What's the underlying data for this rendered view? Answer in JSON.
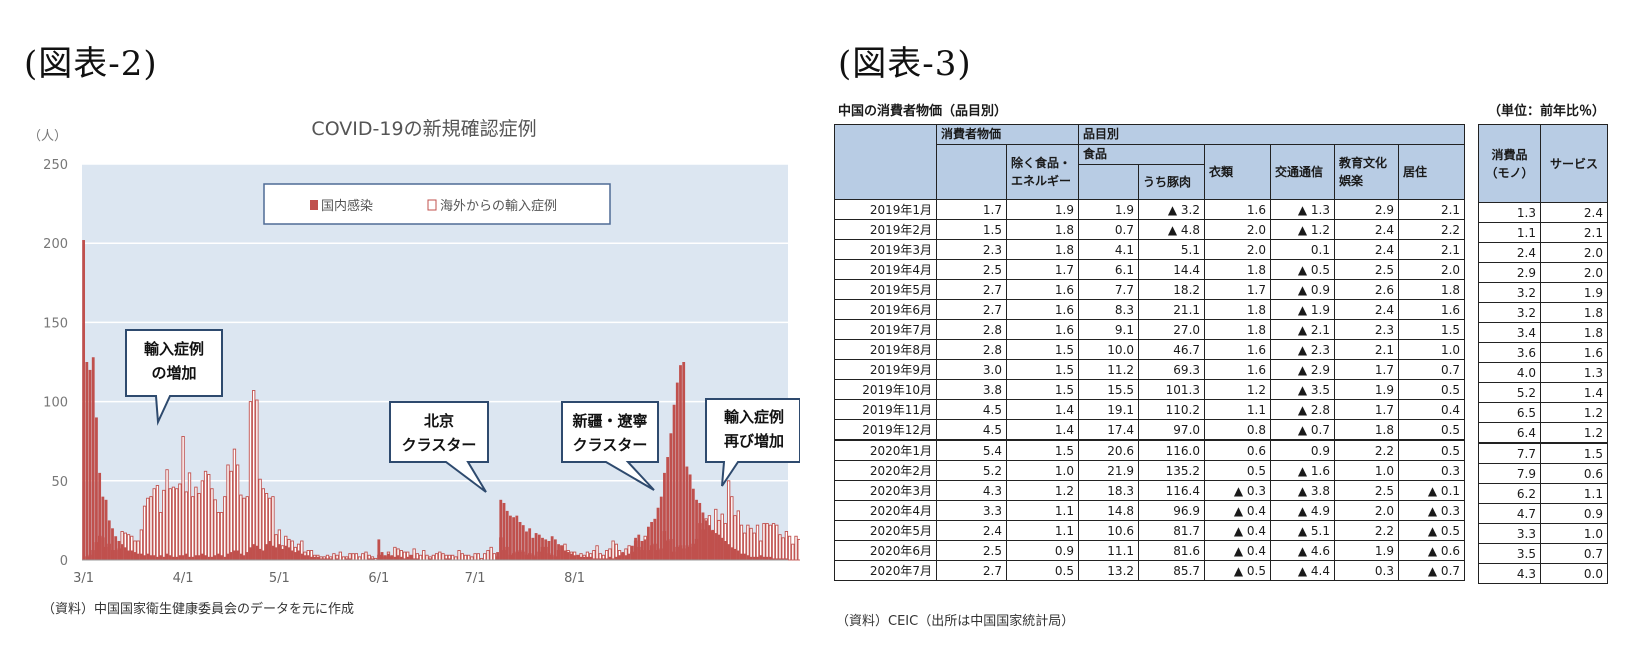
{
  "figure2": {
    "heading": "(図表-2)",
    "source": "（資料）中国国家衛生健康委員会のデータを元に作成"
  },
  "figure3": {
    "heading": "(図表-3)",
    "caption": "中国の消費者物価（品目別）",
    "unit": "（単位：前年比％）",
    "source": "（資料）CEIC（出所は中国国家統計局）",
    "headers": {
      "cpi": "消費者物価",
      "core": "除く食品・エネルギー",
      "by_item": "品目別",
      "food": "食品",
      "pork": "うち豚肉",
      "clothing": "衣類",
      "transport": "交通通信",
      "education": "教育文化娯楽",
      "housing": "居住",
      "goods": "消費品（モノ）",
      "services": "サービス"
    },
    "rows": [
      {
        "month": "2019年1月",
        "cpi": "1.7",
        "core": "1.9",
        "food": "1.9",
        "pork": "▲ 3.2",
        "clothing": "1.6",
        "transport": "▲ 1.3",
        "education": "2.9",
        "housing": "2.1",
        "goods": "1.3",
        "services": "2.4"
      },
      {
        "month": "2019年2月",
        "cpi": "1.5",
        "core": "1.8",
        "food": "0.7",
        "pork": "▲ 4.8",
        "clothing": "2.0",
        "transport": "▲ 1.2",
        "education": "2.4",
        "housing": "2.2",
        "goods": "1.1",
        "services": "2.1"
      },
      {
        "month": "2019年3月",
        "cpi": "2.3",
        "core": "1.8",
        "food": "4.1",
        "pork": "5.1",
        "clothing": "2.0",
        "transport": "0.1",
        "education": "2.4",
        "housing": "2.1",
        "goods": "2.4",
        "services": "2.0"
      },
      {
        "month": "2019年4月",
        "cpi": "2.5",
        "core": "1.7",
        "food": "6.1",
        "pork": "14.4",
        "clothing": "1.8",
        "transport": "▲ 0.5",
        "education": "2.5",
        "housing": "2.0",
        "goods": "2.9",
        "services": "2.0"
      },
      {
        "month": "2019年5月",
        "cpi": "2.7",
        "core": "1.6",
        "food": "7.7",
        "pork": "18.2",
        "clothing": "1.7",
        "transport": "▲ 0.9",
        "education": "2.6",
        "housing": "1.8",
        "goods": "3.2",
        "services": "1.9"
      },
      {
        "month": "2019年6月",
        "cpi": "2.7",
        "core": "1.6",
        "food": "8.3",
        "pork": "21.1",
        "clothing": "1.8",
        "transport": "▲ 1.9",
        "education": "2.4",
        "housing": "1.6",
        "goods": "3.2",
        "services": "1.8"
      },
      {
        "month": "2019年7月",
        "cpi": "2.8",
        "core": "1.6",
        "food": "9.1",
        "pork": "27.0",
        "clothing": "1.8",
        "transport": "▲ 2.1",
        "education": "2.3",
        "housing": "1.5",
        "goods": "3.4",
        "services": "1.8"
      },
      {
        "month": "2019年8月",
        "cpi": "2.8",
        "core": "1.5",
        "food": "10.0",
        "pork": "46.7",
        "clothing": "1.6",
        "transport": "▲ 2.3",
        "education": "2.1",
        "housing": "1.0",
        "goods": "3.6",
        "services": "1.6"
      },
      {
        "month": "2019年9月",
        "cpi": "3.0",
        "core": "1.5",
        "food": "11.2",
        "pork": "69.3",
        "clothing": "1.6",
        "transport": "▲ 2.9",
        "education": "1.7",
        "housing": "0.7",
        "goods": "4.0",
        "services": "1.3"
      },
      {
        "month": "2019年10月",
        "cpi": "3.8",
        "core": "1.5",
        "food": "15.5",
        "pork": "101.3",
        "clothing": "1.2",
        "transport": "▲ 3.5",
        "education": "1.9",
        "housing": "0.5",
        "goods": "5.2",
        "services": "1.4"
      },
      {
        "month": "2019年11月",
        "cpi": "4.5",
        "core": "1.4",
        "food": "19.1",
        "pork": "110.2",
        "clothing": "1.1",
        "transport": "▲ 2.8",
        "education": "1.7",
        "housing": "0.4",
        "goods": "6.5",
        "services": "1.2"
      },
      {
        "month": "2019年12月",
        "cpi": "4.5",
        "core": "1.4",
        "food": "17.4",
        "pork": "97.0",
        "clothing": "0.8",
        "transport": "▲ 0.7",
        "education": "1.8",
        "housing": "0.5",
        "goods": "6.4",
        "services": "1.2"
      },
      {
        "month": "2020年1月",
        "cpi": "5.4",
        "core": "1.5",
        "food": "20.6",
        "pork": "116.0",
        "clothing": "0.6",
        "transport": "0.9",
        "education": "2.2",
        "housing": "0.5",
        "goods": "7.7",
        "services": "1.5"
      },
      {
        "month": "2020年2月",
        "cpi": "5.2",
        "core": "1.0",
        "food": "21.9",
        "pork": "135.2",
        "clothing": "0.5",
        "transport": "▲ 1.6",
        "education": "1.0",
        "housing": "0.3",
        "goods": "7.9",
        "services": "0.6"
      },
      {
        "month": "2020年3月",
        "cpi": "4.3",
        "core": "1.2",
        "food": "18.3",
        "pork": "116.4",
        "clothing": "▲ 0.3",
        "transport": "▲ 3.8",
        "education": "2.5",
        "housing": "▲ 0.1",
        "goods": "6.2",
        "services": "1.1"
      },
      {
        "month": "2020年4月",
        "cpi": "3.3",
        "core": "1.1",
        "food": "14.8",
        "pork": "96.9",
        "clothing": "▲ 0.4",
        "transport": "▲ 4.9",
        "education": "2.0",
        "housing": "▲ 0.3",
        "goods": "4.7",
        "services": "0.9"
      },
      {
        "month": "2020年5月",
        "cpi": "2.4",
        "core": "1.1",
        "food": "10.6",
        "pork": "81.7",
        "clothing": "▲ 0.4",
        "transport": "▲ 5.1",
        "education": "2.2",
        "housing": "▲ 0.5",
        "goods": "3.3",
        "services": "1.0"
      },
      {
        "month": "2020年6月",
        "cpi": "2.5",
        "core": "0.9",
        "food": "11.1",
        "pork": "81.6",
        "clothing": "▲ 0.4",
        "transport": "▲ 4.6",
        "education": "1.9",
        "housing": "▲ 0.6",
        "goods": "3.5",
        "services": "0.7"
      },
      {
        "month": "2020年7月",
        "cpi": "2.7",
        "core": "0.5",
        "food": "13.2",
        "pork": "85.7",
        "clothing": "▲ 0.5",
        "transport": "▲ 4.4",
        "education": "0.3",
        "housing": "▲ 0.7",
        "goods": "4.3",
        "services": "0.0"
      }
    ]
  },
  "chart_data": {
    "type": "bar",
    "title": "COVID-19の新規確認症例",
    "ylabel": "（人）",
    "ylim": [
      0,
      250
    ],
    "yticks": [
      0,
      50,
      100,
      150,
      200,
      250
    ],
    "xtick_labels": [
      "3/1",
      "4/1",
      "5/1",
      "6/1",
      "7/1",
      "8/1"
    ],
    "x_start_date": "2020-03-01",
    "grid": true,
    "legend_position": "top-center",
    "colors": {
      "domestic": "#c0504d",
      "imported_edge": "#c0504d",
      "plot_bg": "#dce6f1"
    },
    "series": [
      {
        "name": "国内感染",
        "style": "filled",
        "values": [
          202,
          125,
          120,
          128,
          90,
          55,
          40,
          38,
          25,
          20,
          15,
          12,
          10,
          8,
          6,
          6,
          5,
          4,
          4,
          3,
          4,
          3,
          3,
          2,
          3,
          2,
          4,
          3,
          2,
          2,
          3,
          3,
          4,
          2,
          2,
          3,
          3,
          4,
          3,
          2,
          2,
          3,
          4,
          3,
          2,
          4,
          5,
          6,
          6,
          4,
          3,
          5,
          8,
          10,
          9,
          7,
          6,
          10,
          12,
          9,
          8,
          10,
          7,
          9,
          8,
          6,
          5,
          6,
          4,
          3,
          3,
          2,
          2,
          2,
          1,
          1,
          1,
          1,
          0,
          1,
          0,
          0,
          1,
          1,
          0,
          0,
          0,
          0,
          0,
          1,
          1,
          0,
          13,
          5,
          3,
          4,
          3,
          2,
          3,
          2,
          1,
          2,
          3,
          1,
          1,
          0,
          0,
          0,
          1,
          0,
          0,
          0,
          0,
          1,
          1,
          0,
          0,
          0,
          0,
          0,
          0,
          0,
          0,
          0,
          0,
          0,
          0,
          0,
          0,
          5,
          38,
          36,
          31,
          28,
          27,
          28,
          24,
          22,
          18,
          20,
          14,
          17,
          16,
          14,
          13,
          12,
          15,
          13,
          10,
          9,
          6,
          5,
          4,
          3,
          3,
          2,
          2,
          2,
          2,
          1,
          1,
          1,
          1,
          1,
          2,
          1,
          2,
          3,
          5,
          3,
          4,
          9,
          14,
          16,
          12,
          13,
          21,
          24,
          26,
          33,
          40,
          55,
          65,
          80,
          98,
          112,
          123,
          125,
          59,
          54,
          45,
          38,
          36,
          30,
          25,
          22,
          19,
          17,
          16,
          14,
          12,
          10,
          8,
          7,
          6,
          4,
          4,
          3,
          2,
          2,
          2,
          3,
          2,
          2,
          2,
          1,
          1,
          1,
          1,
          1
        ]
      },
      {
        "name": "海外からの輸入症例",
        "style": "outline",
        "values": [
          0,
          2,
          3,
          6,
          11,
          15,
          14,
          8,
          10,
          6,
          6,
          7,
          18,
          17,
          16,
          15,
          12,
          12,
          19,
          34,
          39,
          40,
          45,
          47,
          30,
          44,
          57,
          45,
          46,
          45,
          48,
          78,
          43,
          55,
          40,
          46,
          42,
          50,
          56,
          54,
          45,
          38,
          30,
          30,
          40,
          60,
          56,
          70,
          60,
          41,
          39,
          40,
          100,
          107,
          101,
          51,
          45,
          42,
          39,
          40,
          16,
          19,
          9,
          15,
          13,
          12,
          8,
          10,
          12,
          5,
          6,
          6,
          3,
          3,
          2,
          2,
          3,
          2,
          4,
          3,
          5,
          2,
          2,
          4,
          4,
          4,
          2,
          4,
          5,
          3,
          2,
          1,
          3,
          3,
          2,
          5,
          2,
          8,
          7,
          6,
          5,
          5,
          3,
          7,
          4,
          3,
          6,
          3,
          2,
          3,
          4,
          5,
          4,
          3,
          3,
          3,
          2,
          6,
          4,
          3,
          3,
          2,
          4,
          4,
          1,
          4,
          6,
          8,
          4,
          2,
          14,
          6,
          8,
          3,
          4,
          5,
          6,
          5,
          3,
          4,
          3,
          2,
          5,
          8,
          8,
          4,
          3,
          2,
          6,
          9,
          10,
          6,
          5,
          5,
          3,
          4,
          3,
          5,
          4,
          6,
          9,
          4,
          3,
          6,
          7,
          12,
          10,
          6,
          4,
          7,
          9,
          5,
          12,
          8,
          6,
          15,
          6,
          9,
          10,
          6,
          7,
          18,
          12,
          13,
          5,
          8,
          9,
          7,
          9,
          8,
          10,
          13,
          23,
          19,
          26,
          28,
          18,
          32,
          25,
          29,
          23,
          50,
          40,
          28,
          31,
          22,
          17,
          22,
          20,
          17,
          22,
          12,
          23,
          23,
          22,
          23,
          22,
          16,
          14,
          18,
          15,
          10,
          15,
          13
        ]
      }
    ],
    "annotations": [
      "輸入症例の増加",
      "北京クラスター",
      "新疆・遼寧クラスター",
      "輸入症例再び増加"
    ]
  }
}
